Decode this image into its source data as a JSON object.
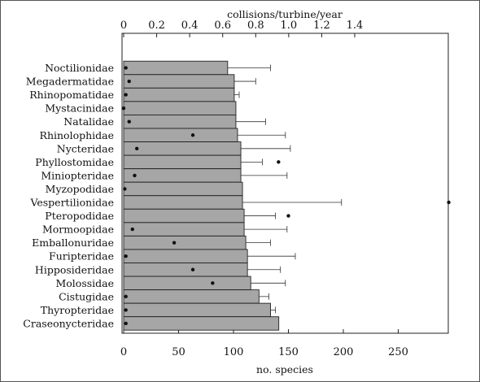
{
  "chart_data": {
    "type": "bar",
    "orientation": "horizontal",
    "categories": [
      "Noctilionidae",
      "Megadermatidae",
      "Rhinopomatidae",
      "Mystacinidae",
      "Natalidae",
      "Rhinolophidae",
      "Nycteridae",
      "Phyllostomidae",
      "Miniopteridae",
      "Myzopodidae",
      "Vespertilionidae",
      "Pteropodidae",
      "Mormoopidae",
      "Emballonuridae",
      "Furipteridae",
      "Hipposideridae",
      "Molossidae",
      "Cistugidae",
      "Thyropteridae",
      "Craseonycteridae"
    ],
    "series": [
      {
        "values": [
          0.63,
          0.67,
          0.67,
          0.68,
          0.68,
          0.69,
          0.71,
          0.71,
          0.71,
          0.72,
          0.72,
          0.73,
          0.73,
          0.74,
          0.75,
          0.75,
          0.77,
          0.82,
          0.89,
          0.94
        ],
        "error_upper": [
          0.89,
          0.8,
          0.7,
          0.68,
          0.86,
          0.98,
          1.01,
          0.84,
          0.99,
          0.72,
          1.32,
          0.92,
          0.99,
          0.89,
          1.04,
          0.95,
          0.98,
          0.88,
          0.92,
          0.94
        ]
      },
      {
        "values": [
          2,
          5,
          2,
          0,
          5,
          63,
          12,
          141,
          10,
          1,
          296,
          150,
          8,
          46,
          2,
          63,
          81,
          2,
          2,
          2
        ]
      }
    ],
    "x_top_label": "collisions/turbine/year",
    "x_top_ticks": [
      "0",
      "0.2",
      "0.4",
      "0.6",
      "0.8",
      "1.0",
      "1.2",
      "1.4"
    ],
    "x_top_range": [
      0,
      1.4
    ],
    "x_bottom_label": "no. species",
    "x_bottom_ticks": [
      "0",
      "50",
      "100",
      "150",
      "200",
      "250"
    ],
    "x_bottom_range": [
      0,
      296
    ],
    "grid": false,
    "bar_color": "#a6a6a6"
  }
}
